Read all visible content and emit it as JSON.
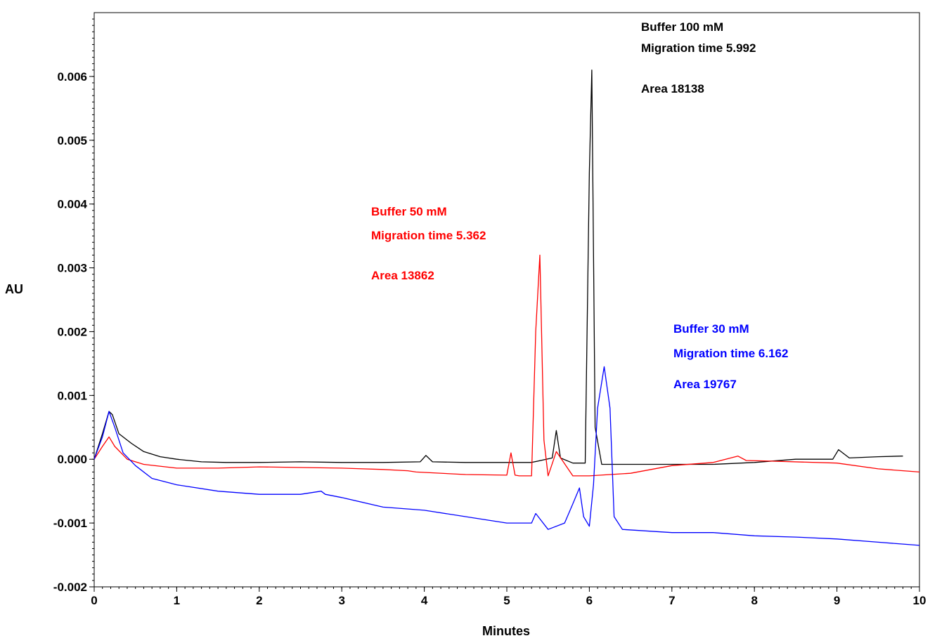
{
  "chart_data": {
    "type": "line",
    "xlabel": "Minutes",
    "ylabel": "AU",
    "xlim": [
      0,
      10
    ],
    "ylim": [
      -0.002,
      0.007
    ],
    "x_ticks": [
      "0",
      "1",
      "2",
      "3",
      "4",
      "5",
      "6",
      "7",
      "8",
      "9",
      "10"
    ],
    "y_ticks": [
      "-0.002",
      "-0.001",
      "0.000",
      "0.001",
      "0.002",
      "0.003",
      "0.004",
      "0.005",
      "0.006"
    ],
    "grid": false,
    "series": [
      {
        "color": "#000000",
        "x": [
          0,
          0.1,
          0.18,
          0.22,
          0.3,
          0.45,
          0.6,
          0.8,
          1.0,
          1.3,
          1.6,
          2.0,
          2.5,
          3.0,
          3.5,
          3.95,
          4.02,
          4.1,
          4.5,
          5.0,
          5.3,
          5.55,
          5.6,
          5.65,
          5.8,
          5.95,
          6.0,
          6.03,
          6.07,
          6.15,
          6.3,
          6.6,
          7.0,
          7.5,
          8.0,
          8.5,
          8.95,
          9.02,
          9.15,
          9.5,
          9.8
        ],
        "values": [
          0.0,
          0.0004,
          0.00075,
          0.0007,
          0.0004,
          0.00025,
          0.00012,
          4e-05,
          0.0,
          -4e-05,
          -5e-05,
          -5e-05,
          -4e-05,
          -5e-05,
          -5e-05,
          -4e-05,
          6e-05,
          -4e-05,
          -5e-05,
          -5e-05,
          -5e-05,
          2e-05,
          0.00045,
          2e-05,
          -6e-05,
          -6e-05,
          0.0045,
          0.0061,
          0.0005,
          -8e-05,
          -8e-05,
          -8e-05,
          -8e-05,
          -8e-05,
          -5e-05,
          0.0,
          0.0,
          0.00015,
          2e-05,
          4e-05,
          5e-05
        ]
      },
      {
        "color": "#ff0000",
        "x": [
          0,
          0.1,
          0.18,
          0.25,
          0.4,
          0.6,
          1.0,
          1.5,
          2.0,
          3.0,
          3.5,
          3.8,
          3.9,
          4.5,
          5.0,
          5.05,
          5.1,
          5.15,
          5.3,
          5.35,
          5.4,
          5.45,
          5.5,
          5.6,
          5.8,
          6.0,
          6.5,
          7.0,
          7.5,
          7.8,
          7.9,
          8.2,
          9.0,
          9.5,
          10.0
        ],
        "values": [
          0.0,
          0.0002,
          0.00035,
          0.0002,
          0.0,
          -8e-05,
          -0.00014,
          -0.00014,
          -0.00012,
          -0.00014,
          -0.00016,
          -0.00018,
          -0.0002,
          -0.00024,
          -0.00025,
          0.0001,
          -0.00025,
          -0.00026,
          -0.00026,
          0.002,
          0.0032,
          0.0003,
          -0.00026,
          0.00012,
          -0.00026,
          -0.00026,
          -0.00022,
          -0.0001,
          -5e-05,
          5e-05,
          -2e-05,
          -3e-05,
          -6e-05,
          -0.00015,
          -0.0002
        ]
      },
      {
        "color": "#0000ff",
        "x": [
          0,
          0.1,
          0.18,
          0.25,
          0.35,
          0.5,
          0.7,
          1.0,
          1.5,
          2.0,
          2.5,
          2.75,
          2.8,
          3.0,
          3.5,
          4.0,
          4.5,
          5.0,
          5.3,
          5.35,
          5.5,
          5.7,
          5.8,
          5.88,
          5.93,
          6.0,
          6.05,
          6.1,
          6.18,
          6.25,
          6.3,
          6.4,
          7.0,
          7.5,
          8.0,
          8.5,
          9.0,
          9.5,
          10.0
        ],
        "values": [
          0.0,
          0.00035,
          0.00075,
          0.0005,
          0.0001,
          -0.0001,
          -0.0003,
          -0.0004,
          -0.0005,
          -0.00055,
          -0.00055,
          -0.0005,
          -0.00055,
          -0.0006,
          -0.00075,
          -0.0008,
          -0.0009,
          -0.001,
          -0.001,
          -0.00085,
          -0.0011,
          -0.001,
          -0.0007,
          -0.00045,
          -0.0009,
          -0.00105,
          -0.0004,
          0.0008,
          0.00145,
          0.0008,
          -0.0009,
          -0.0011,
          -0.00115,
          -0.00115,
          -0.0012,
          -0.00122,
          -0.00125,
          -0.0013,
          -0.00135
        ]
      }
    ],
    "annotations": [
      {
        "color": "#000000",
        "lines": [
          "Buffer 100 mM",
          "Migration time   5.992",
          "Area 18138"
        ]
      },
      {
        "color": "#ff0000",
        "lines": [
          "Buffer 50 mM",
          "Migration time 5.362",
          "Area 13862"
        ]
      },
      {
        "color": "#0000ff",
        "lines": [
          "Buffer 30 mM",
          "Migration time 6.162",
          "Area  19767"
        ]
      }
    ]
  }
}
